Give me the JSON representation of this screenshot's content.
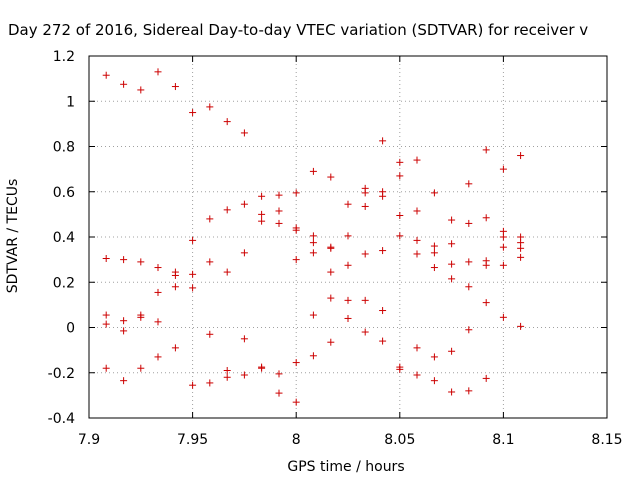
{
  "chart_data": {
    "type": "scatter",
    "title": "Day 272 of 2016, Sidereal Day-to-day VTEC variation (SDTVAR) for receiver v",
    "xlabel": "GPS time / hours",
    "ylabel": "SDTVAR / TECUs",
    "xlim": [
      7.9,
      8.15
    ],
    "ylim": [
      -0.4,
      1.2
    ],
    "xticks": [
      7.9,
      7.95,
      8.0,
      8.05,
      8.1,
      8.15
    ],
    "xtick_labels": [
      "7.9",
      "7.95",
      "8",
      "8.05",
      "8.1",
      "8.15"
    ],
    "yticks": [
      -0.4,
      -0.2,
      0,
      0.2,
      0.4,
      0.6,
      0.8,
      1.0,
      1.2
    ],
    "ytick_labels": [
      "-0.4",
      "-0.2",
      "0",
      "0.2",
      "0.4",
      "0.6",
      "0.8",
      "1",
      "1.2"
    ],
    "grid": true,
    "marker": "+",
    "series": [
      {
        "name": "SDTVAR",
        "color": "#cc0000",
        "points": [
          [
            7.9083,
            1.115
          ],
          [
            7.9083,
            0.305
          ],
          [
            7.9083,
            0.055
          ],
          [
            7.9083,
            0.015
          ],
          [
            7.9083,
            -0.18
          ],
          [
            7.9167,
            1.075
          ],
          [
            7.9167,
            0.3
          ],
          [
            7.9167,
            0.03
          ],
          [
            7.9167,
            -0.015
          ],
          [
            7.9167,
            -0.235
          ],
          [
            7.925,
            1.05
          ],
          [
            7.925,
            0.29
          ],
          [
            7.925,
            0.055
          ],
          [
            7.925,
            0.045
          ],
          [
            7.925,
            -0.18
          ],
          [
            7.9333,
            1.13
          ],
          [
            7.9333,
            0.265
          ],
          [
            7.9333,
            0.155
          ],
          [
            7.9333,
            0.025
          ],
          [
            7.9333,
            -0.13
          ],
          [
            7.9417,
            1.065
          ],
          [
            7.9417,
            0.245
          ],
          [
            7.9417,
            0.23
          ],
          [
            7.9417,
            0.18
          ],
          [
            7.9417,
            -0.09
          ],
          [
            7.95,
            0.95
          ],
          [
            7.95,
            0.385
          ],
          [
            7.95,
            0.235
          ],
          [
            7.95,
            0.175
          ],
          [
            7.95,
            -0.255
          ],
          [
            7.9583,
            0.975
          ],
          [
            7.9583,
            0.48
          ],
          [
            7.9583,
            0.29
          ],
          [
            7.9583,
            -0.03
          ],
          [
            7.9583,
            -0.245
          ],
          [
            7.9667,
            0.91
          ],
          [
            7.9667,
            0.52
          ],
          [
            7.9667,
            0.245
          ],
          [
            7.9667,
            -0.19
          ],
          [
            7.9667,
            -0.22
          ],
          [
            7.975,
            0.86
          ],
          [
            7.975,
            0.545
          ],
          [
            7.975,
            0.33
          ],
          [
            7.975,
            -0.05
          ],
          [
            7.975,
            -0.21
          ],
          [
            7.9833,
            0.58
          ],
          [
            7.9833,
            0.5
          ],
          [
            7.9833,
            0.47
          ],
          [
            7.9833,
            -0.175
          ],
          [
            7.9833,
            -0.18
          ],
          [
            7.9917,
            0.585
          ],
          [
            7.9917,
            0.515
          ],
          [
            7.9917,
            0.46
          ],
          [
            7.9917,
            -0.205
          ],
          [
            7.9917,
            -0.29
          ],
          [
            8.0,
            0.595
          ],
          [
            8.0,
            0.44
          ],
          [
            8.0,
            0.43
          ],
          [
            8.0,
            0.3
          ],
          [
            8.0,
            -0.155
          ],
          [
            8.0,
            -0.33
          ],
          [
            8.0083,
            0.69
          ],
          [
            8.0083,
            0.405
          ],
          [
            8.0083,
            0.375
          ],
          [
            8.0083,
            0.33
          ],
          [
            8.0083,
            0.055
          ],
          [
            8.0083,
            -0.125
          ],
          [
            8.0167,
            0.665
          ],
          [
            8.0167,
            0.355
          ],
          [
            8.0167,
            0.35
          ],
          [
            8.0167,
            0.245
          ],
          [
            8.0167,
            0.13
          ],
          [
            8.0167,
            -0.065
          ],
          [
            8.025,
            0.545
          ],
          [
            8.025,
            0.405
          ],
          [
            8.025,
            0.275
          ],
          [
            8.025,
            0.12
          ],
          [
            8.025,
            0.04
          ],
          [
            8.0333,
            0.615
          ],
          [
            8.0333,
            0.595
          ],
          [
            8.0333,
            0.535
          ],
          [
            8.0333,
            0.325
          ],
          [
            8.0333,
            0.12
          ],
          [
            8.0333,
            -0.02
          ],
          [
            8.0417,
            0.825
          ],
          [
            8.0417,
            0.6
          ],
          [
            8.0417,
            0.58
          ],
          [
            8.0417,
            0.34
          ],
          [
            8.0417,
            0.075
          ],
          [
            8.0417,
            -0.06
          ],
          [
            8.05,
            0.73
          ],
          [
            8.05,
            0.67
          ],
          [
            8.05,
            0.495
          ],
          [
            8.05,
            0.405
          ],
          [
            8.05,
            -0.175
          ],
          [
            8.05,
            -0.185
          ],
          [
            8.0583,
            0.74
          ],
          [
            8.0583,
            0.515
          ],
          [
            8.0583,
            0.385
          ],
          [
            8.0583,
            0.325
          ],
          [
            8.0583,
            -0.09
          ],
          [
            8.0583,
            -0.21
          ],
          [
            8.0667,
            0.595
          ],
          [
            8.0667,
            0.36
          ],
          [
            8.0667,
            0.33
          ],
          [
            8.0667,
            0.265
          ],
          [
            8.0667,
            -0.13
          ],
          [
            8.0667,
            -0.235
          ],
          [
            8.075,
            0.475
          ],
          [
            8.075,
            0.37
          ],
          [
            8.075,
            0.28
          ],
          [
            8.075,
            0.215
          ],
          [
            8.075,
            -0.105
          ],
          [
            8.075,
            -0.285
          ],
          [
            8.0833,
            0.635
          ],
          [
            8.0833,
            0.46
          ],
          [
            8.0833,
            0.29
          ],
          [
            8.0833,
            0.18
          ],
          [
            8.0833,
            -0.01
          ],
          [
            8.0833,
            -0.28
          ],
          [
            8.0917,
            0.785
          ],
          [
            8.0917,
            0.485
          ],
          [
            8.0917,
            0.295
          ],
          [
            8.0917,
            0.275
          ],
          [
            8.0917,
            0.11
          ],
          [
            8.0917,
            -0.225
          ],
          [
            8.1,
            0.7
          ],
          [
            8.1,
            0.425
          ],
          [
            8.1,
            0.4
          ],
          [
            8.1,
            0.355
          ],
          [
            8.1,
            0.275
          ],
          [
            8.1,
            0.045
          ],
          [
            8.1083,
            0.76
          ],
          [
            8.1083,
            0.4
          ],
          [
            8.1083,
            0.375
          ],
          [
            8.1083,
            0.35
          ],
          [
            8.1083,
            0.31
          ],
          [
            8.1083,
            0.005
          ]
        ]
      }
    ]
  }
}
